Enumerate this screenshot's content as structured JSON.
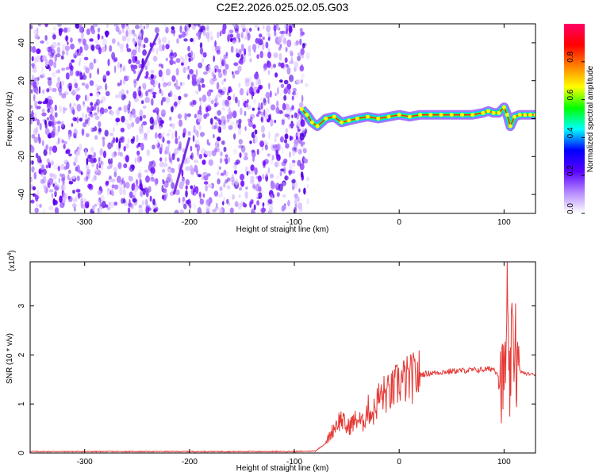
{
  "title": "C2E2.2026.025.02.05.G03",
  "colors": {
    "signal_line": "#e53935",
    "scatter_purple": "#6a00ff",
    "background": "#ffffff",
    "axis": "#000000"
  },
  "chart_data": [
    {
      "type": "heatmap",
      "xlabel": "Height of straight line (km)",
      "ylabel": "Frequency (Hz)",
      "xlim": [
        -352,
        130
      ],
      "ylim": [
        -50,
        50
      ],
      "x_ticks": [
        -300,
        -200,
        -100,
        0,
        100
      ],
      "y_ticks": [
        -40,
        -20,
        0,
        20,
        40
      ],
      "colorbar": {
        "label": "Normalized spectral amplitude",
        "range": [
          0,
          1
        ],
        "ticks": [
          "0.0",
          "0.2",
          "0.4",
          "0.6",
          "0.8"
        ],
        "colors": [
          "#ffffff",
          "#b388ff",
          "#5a00ff",
          "#0000ff",
          "#00ffff",
          "#00ff00",
          "#ffff00",
          "#ff8000",
          "#ff0000",
          "#ff0066"
        ]
      },
      "noise_region_x": [
        -352,
        -87
      ],
      "signal_track": {
        "x": [
          -93,
          -88,
          -83,
          -78,
          -70,
          -62,
          -55,
          -48,
          -40,
          -30,
          -20,
          -10,
          0,
          10,
          20,
          30,
          40,
          50,
          60,
          70,
          80,
          85,
          90,
          95,
          100,
          103,
          106,
          110,
          115,
          120,
          125,
          130
        ],
        "freq_hz": [
          5,
          2,
          -2,
          -4,
          0,
          1,
          -2,
          -1,
          0,
          1,
          0,
          1,
          2,
          1,
          2,
          2,
          2,
          2,
          2,
          2,
          3,
          4,
          3,
          3,
          6,
          2,
          -4,
          1,
          2,
          2,
          2,
          2
        ]
      }
    },
    {
      "type": "line",
      "xlabel": "Height of straight line (km)",
      "ylabel": "SNR (10 * v/v)",
      "y_multiplier": "(x10",
      "y_multiplier_exp": "4",
      "y_multiplier_close": ")",
      "xlim": [
        -352,
        130
      ],
      "ylim": [
        0,
        3.9
      ],
      "x_ticks": [
        -300,
        -200,
        -100,
        0,
        100
      ],
      "y_ticks": [
        0,
        1,
        2,
        3
      ],
      "series": [
        {
          "x": [
            -352,
            -200,
            -100,
            -80,
            -70,
            -60,
            -55,
            -50,
            -45,
            -40,
            -35,
            -30,
            -25,
            -20,
            -15,
            -10,
            -5,
            0,
            10,
            20,
            30,
            40,
            50,
            60,
            70,
            80,
            90,
            95,
            100,
            103,
            105,
            108,
            112,
            120,
            130
          ],
          "values": [
            0.03,
            0.03,
            0.03,
            0.04,
            0.2,
            0.6,
            0.7,
            0.5,
            0.6,
            0.7,
            0.6,
            0.9,
            0.8,
            1.1,
            1.2,
            1.2,
            1.3,
            1.45,
            1.5,
            1.6,
            1.63,
            1.65,
            1.67,
            1.68,
            1.69,
            1.7,
            1.72,
            1.6,
            1.4,
            2.6,
            1.2,
            2.4,
            1.7,
            1.62,
            1.6
          ]
        }
      ]
    }
  ]
}
